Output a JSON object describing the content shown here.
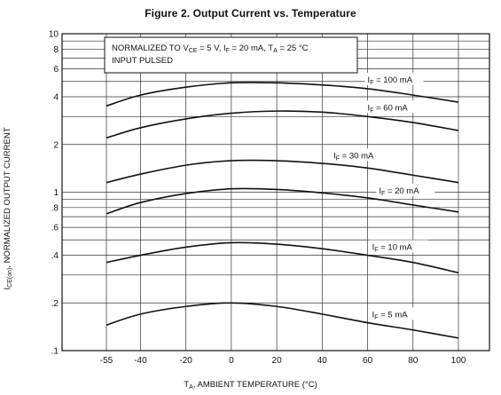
{
  "title": "Figure 2.  Output Current vs. Temperature",
  "chart_data": {
    "type": "line",
    "title": "Figure 2.  Output Current vs. Temperature",
    "xlabel": "T",
    "xlabel_sub": "A",
    "xlabel_rest": ", AMBIENT TEMPERATURE (°C)",
    "ylabel": "I",
    "ylabel_sub": "CE(on)",
    "ylabel_rest": ", NORMALIZED OUTPUT CURRENT",
    "y_scale": "log",
    "ylim": [
      0.1,
      10
    ],
    "xlim": [
      -60,
      100
    ],
    "xticks": [
      -55,
      -40,
      -20,
      0,
      20,
      40,
      60,
      80,
      100
    ],
    "xtick_labels": [
      "-55",
      "-40",
      "-20",
      "0",
      "20",
      "40",
      "60",
      "80",
      "100"
    ],
    "yticks": [
      0.1,
      0.2,
      0.4,
      0.6,
      0.8,
      1,
      2,
      4,
      6,
      8,
      10
    ],
    "ytick_labels": [
      ".1",
      ".2",
      ".4",
      ".6",
      ".8",
      "1",
      "2",
      "4",
      "6",
      "8",
      "10"
    ],
    "grid": true,
    "annotation": {
      "line1_a": "NORMALIZED TO  V",
      "line1_b": "CE",
      "line1_c": " = 5 V,  I",
      "line1_d": "F",
      "line1_e": " = 20 mA,  T",
      "line1_f": "A",
      "line1_g": " = 25 °C",
      "line2": "INPUT PULSED"
    },
    "x": [
      -55,
      -40,
      -20,
      0,
      20,
      40,
      60,
      80,
      100
    ],
    "series": [
      {
        "label_main": "I",
        "label_sub": "F",
        "label_rest": " = 100 mA",
        "label_temp": 60,
        "values": [
          3.5,
          4.1,
          4.6,
          4.9,
          4.9,
          4.75,
          4.5,
          4.1,
          3.7
        ]
      },
      {
        "label_main": "I",
        "label_sub": "F",
        "label_rest": " = 60 mA",
        "label_temp": 60,
        "values": [
          2.2,
          2.55,
          2.9,
          3.15,
          3.25,
          3.2,
          3.0,
          2.75,
          2.45
        ]
      },
      {
        "label_main": "I",
        "label_sub": "F",
        "label_rest": " = 30 mA",
        "label_temp": 45,
        "values": [
          1.15,
          1.3,
          1.48,
          1.58,
          1.58,
          1.52,
          1.42,
          1.28,
          1.15
        ]
      },
      {
        "label_main": "I",
        "label_sub": "F",
        "label_rest": " = 20 mA",
        "label_temp": 65,
        "values": [
          0.73,
          0.86,
          0.98,
          1.05,
          1.04,
          0.99,
          0.92,
          0.83,
          0.75
        ]
      },
      {
        "label_main": "I",
        "label_sub": "F",
        "label_rest": " = 10 mA",
        "label_temp": 62,
        "values": [
          0.36,
          0.4,
          0.45,
          0.48,
          0.47,
          0.44,
          0.4,
          0.36,
          0.31
        ]
      },
      {
        "label_main": "I",
        "label_sub": "F",
        "label_rest": " = 5 mA",
        "label_temp": 62,
        "values": [
          0.145,
          0.17,
          0.19,
          0.2,
          0.19,
          0.17,
          0.15,
          0.135,
          0.12
        ]
      }
    ]
  }
}
